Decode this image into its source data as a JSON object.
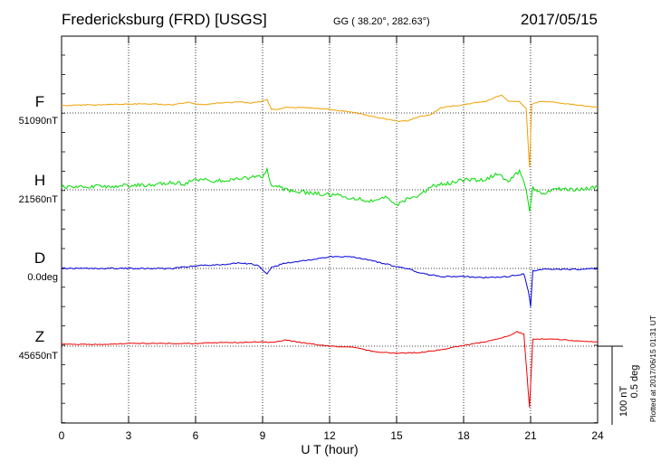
{
  "header": {
    "station": "Fredericksburg (FRD)  [USGS]",
    "coords": "GG ( 38.20°, 282.63°)",
    "date": "2017/05/15"
  },
  "side_note": "Plotted at 2017/06/15 01:31  UT",
  "scale_bar": {
    "line1": "100 nT",
    "line2": "0.5 deg"
  },
  "chart_data": {
    "type": "line",
    "xlabel": "U T (hour)",
    "xlim": [
      0,
      24
    ],
    "xticks": [
      0,
      3,
      6,
      9,
      12,
      15,
      18,
      21,
      24
    ],
    "grid": true,
    "series": [
      {
        "name": "F",
        "baseline": "51090nT",
        "color": "#f0a000",
        "points": [
          [
            0,
            8
          ],
          [
            1,
            9
          ],
          [
            2,
            9
          ],
          [
            3,
            10
          ],
          [
            4,
            10
          ],
          [
            5,
            9
          ],
          [
            5.7,
            12
          ],
          [
            6,
            10
          ],
          [
            6.5,
            9
          ],
          [
            7,
            11
          ],
          [
            8,
            12
          ],
          [
            8.5,
            11
          ],
          [
            9,
            13
          ],
          [
            9.2,
            15
          ],
          [
            9.4,
            4
          ],
          [
            9.7,
            4
          ],
          [
            10,
            6
          ],
          [
            11,
            6
          ],
          [
            12,
            4
          ],
          [
            13,
            1
          ],
          [
            14,
            -4
          ],
          [
            15,
            -9
          ],
          [
            15.5,
            -9
          ],
          [
            16,
            -4
          ],
          [
            16.5,
            -2
          ],
          [
            17,
            6
          ],
          [
            18,
            9
          ],
          [
            19,
            13
          ],
          [
            19.7,
            20
          ],
          [
            20,
            13
          ],
          [
            20.5,
            13
          ],
          [
            20.8,
            5
          ],
          [
            20.95,
            -60
          ],
          [
            21.05,
            10
          ],
          [
            21.5,
            13
          ],
          [
            22,
            12
          ],
          [
            23,
            9
          ],
          [
            24,
            6
          ]
        ]
      },
      {
        "name": "H",
        "baseline": "21560nT",
        "color": "#00dd00",
        "points": [
          [
            0,
            3
          ],
          [
            1,
            3
          ],
          [
            2,
            4
          ],
          [
            3,
            5
          ],
          [
            4,
            5
          ],
          [
            5,
            8
          ],
          [
            5.5,
            6
          ],
          [
            6,
            12
          ],
          [
            7,
            10
          ],
          [
            8,
            12
          ],
          [
            9,
            15
          ],
          [
            9.2,
            23
          ],
          [
            9.4,
            3
          ],
          [
            9.6,
            5
          ],
          [
            10,
            0
          ],
          [
            11,
            -3
          ],
          [
            12,
            -5
          ],
          [
            13,
            -9
          ],
          [
            14,
            -13
          ],
          [
            14.5,
            -9
          ],
          [
            15,
            -17
          ],
          [
            15.5,
            -10
          ],
          [
            16,
            -8
          ],
          [
            16.5,
            4
          ],
          [
            17,
            6
          ],
          [
            17.5,
            8
          ],
          [
            18,
            11
          ],
          [
            19,
            11
          ],
          [
            19.5,
            18
          ],
          [
            20,
            9
          ],
          [
            20.5,
            20
          ],
          [
            20.8,
            1
          ],
          [
            20.95,
            -22
          ],
          [
            21.1,
            3
          ],
          [
            21.5,
            -6
          ],
          [
            22,
            2
          ],
          [
            23,
            0
          ],
          [
            24,
            3
          ]
        ]
      },
      {
        "name": "D",
        "baseline": "0.0deg",
        "color": "#0000dd",
        "points": [
          [
            0,
            0
          ],
          [
            1,
            0
          ],
          [
            2,
            0
          ],
          [
            3,
            0
          ],
          [
            4,
            0
          ],
          [
            5,
            0
          ],
          [
            6,
            3
          ],
          [
            7,
            4
          ],
          [
            8,
            6
          ],
          [
            8.5,
            5
          ],
          [
            8.8,
            3
          ],
          [
            9,
            -2
          ],
          [
            9.2,
            -6
          ],
          [
            9.4,
            1
          ],
          [
            10,
            6
          ],
          [
            11,
            9
          ],
          [
            12,
            13
          ],
          [
            13,
            13
          ],
          [
            14,
            8
          ],
          [
            15,
            2
          ],
          [
            15.5,
            0
          ],
          [
            16,
            -5
          ],
          [
            17,
            -9
          ],
          [
            18,
            -9
          ],
          [
            19,
            -10
          ],
          [
            20,
            -9
          ],
          [
            20.7,
            -6
          ],
          [
            20.9,
            -25
          ],
          [
            21,
            -42
          ],
          [
            21.1,
            -3
          ],
          [
            21.5,
            -1
          ],
          [
            22,
            -1
          ],
          [
            23,
            -1
          ],
          [
            24,
            0
          ]
        ]
      },
      {
        "name": "Z",
        "baseline": "45650nT",
        "color": "#ee0000",
        "points": [
          [
            0,
            2
          ],
          [
            1,
            2
          ],
          [
            2,
            2
          ],
          [
            3,
            3
          ],
          [
            4,
            3
          ],
          [
            5,
            3
          ],
          [
            6,
            3
          ],
          [
            7,
            4
          ],
          [
            8,
            4
          ],
          [
            9,
            5
          ],
          [
            9.5,
            4
          ],
          [
            10,
            7
          ],
          [
            11,
            3
          ],
          [
            12,
            0
          ],
          [
            13,
            -1
          ],
          [
            14,
            -6
          ],
          [
            15,
            -8
          ],
          [
            16,
            -7
          ],
          [
            17,
            -4
          ],
          [
            18,
            1
          ],
          [
            19,
            5
          ],
          [
            20,
            11
          ],
          [
            20.4,
            16
          ],
          [
            20.7,
            13
          ],
          [
            20.95,
            -68
          ],
          [
            21.1,
            8
          ],
          [
            21.5,
            8
          ],
          [
            22,
            8
          ],
          [
            23,
            6
          ],
          [
            24,
            5
          ]
        ]
      }
    ]
  }
}
